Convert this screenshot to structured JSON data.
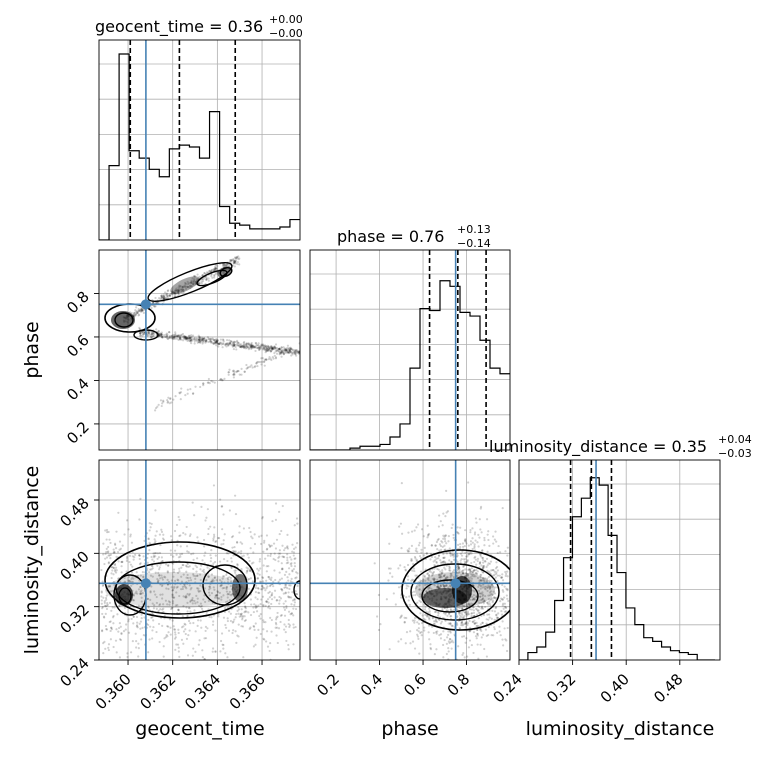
{
  "chart_data": {
    "type": "corner",
    "parameters": [
      "geocent_time",
      "phase",
      "luminosity_distance"
    ],
    "titles": [
      {
        "text": "geocent_time = 0.36",
        "plus": "+0.00",
        "minus": "−0.00"
      },
      {
        "text": "phase = 0.76",
        "plus": "+0.13",
        "minus": "−0.14"
      },
      {
        "text": "luminosity_distance = 0.35",
        "plus": "+0.04",
        "minus": "−0.03"
      }
    ],
    "axis_labels": {
      "x": [
        "geocent_time",
        "phase",
        "luminosity_distance"
      ],
      "y": [
        "phase",
        "luminosity_distance"
      ]
    },
    "ranges": {
      "geocent_time": [
        0.3587,
        0.3677
      ],
      "phase": [
        0.08,
        1.0
      ],
      "luminosity_distance": [
        0.24,
        0.54
      ]
    },
    "ticks": {
      "geocent_time": [
        "0.360",
        "0.362",
        "0.364",
        "0.366"
      ],
      "phase": [
        "0.2",
        "0.4",
        "0.6",
        "0.8"
      ],
      "luminosity_distance": [
        "0.24",
        "0.32",
        "0.40",
        "0.48"
      ]
    },
    "truths": {
      "geocent_time": 0.3608,
      "phase": 0.75,
      "luminosity_distance": 0.355
    },
    "quantiles": {
      "geocent_time": [
        0.3601,
        0.3623,
        0.3648
      ],
      "phase": [
        0.63,
        0.76,
        0.89
      ],
      "luminosity_distance": [
        0.317,
        0.348,
        0.378
      ]
    },
    "histograms": {
      "geocent_time": {
        "edges_start": 0.3587,
        "bin_width": 0.00045,
        "counts": [
          0,
          0.4,
          1.0,
          0.48,
          0.44,
          0.38,
          0.34,
          0.49,
          0.51,
          0.5,
          0.44,
          0.69,
          0.18,
          0.09,
          0.08,
          0.06,
          0.06,
          0.06,
          0.07,
          0.11
        ]
      },
      "phase": {
        "edges_start": 0.08,
        "bin_width": 0.046,
        "counts": [
          0.0,
          0.0,
          0.0,
          0.0,
          0.01,
          0.02,
          0.02,
          0.03,
          0.07,
          0.14,
          0.44,
          0.76,
          0.75,
          0.91,
          0.88,
          0.74,
          0.72,
          0.59,
          0.44,
          0.41
        ]
      },
      "luminosity_distance": {
        "edges_start": 0.24,
        "bin_width": 0.0133,
        "counts": [
          0.0,
          0.04,
          0.07,
          0.15,
          0.32,
          0.55,
          0.77,
          0.87,
          0.98,
          0.94,
          0.67,
          0.47,
          0.28,
          0.19,
          0.12,
          0.1,
          0.07,
          0.05,
          0.04,
          0.03,
          0.0,
          0.0
        ]
      }
    },
    "grid": true,
    "truth_color": "#4682b4",
    "line_color": "#000000"
  }
}
